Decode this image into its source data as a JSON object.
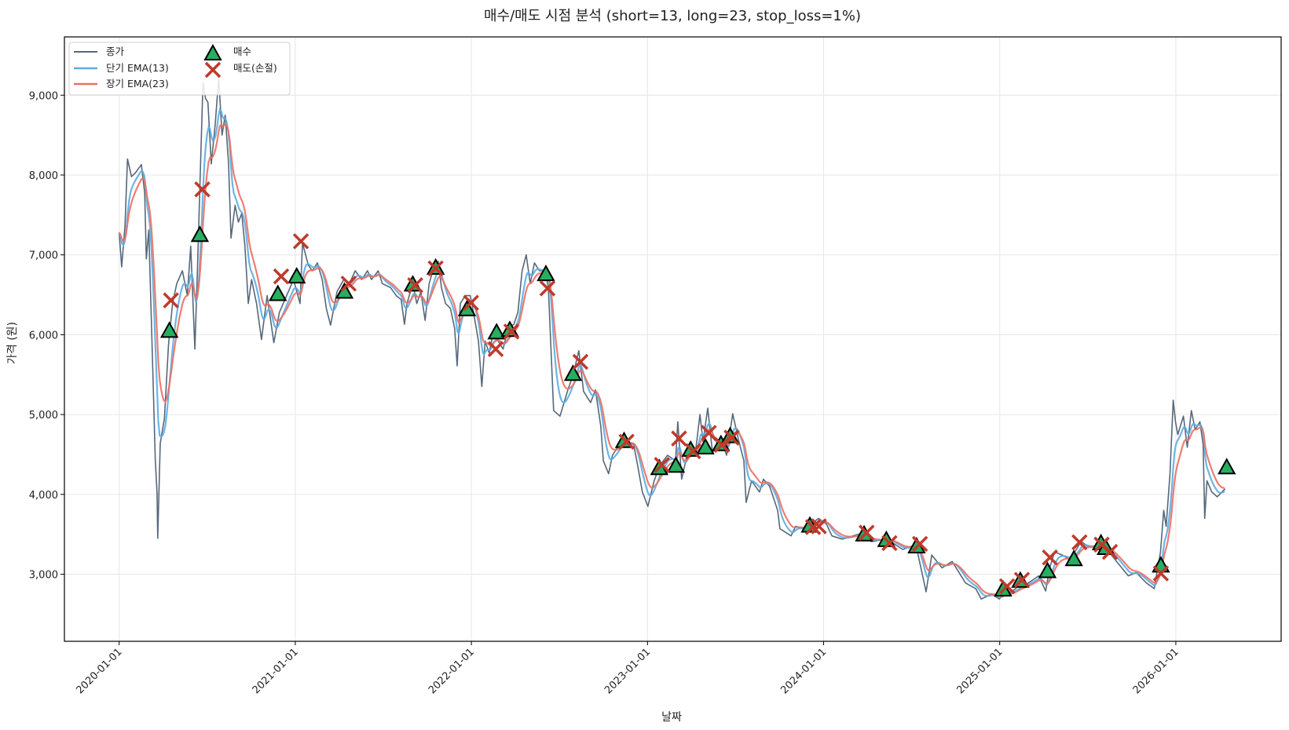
{
  "chart_data": {
    "type": "line",
    "title": "매수/매도 시점 분석 (short=13, long=23, stop_loss=1%)",
    "xlabel": "날짜",
    "ylabel": "가격 (원)",
    "xlim": [
      2019.689,
      2026.598
    ],
    "ylim": [
      2160,
      9730
    ],
    "grid": true,
    "legend_position": "top-left",
    "params": {
      "short": 13,
      "long": 23,
      "stop_loss_pct": 1
    },
    "xticks": [
      {
        "value": 2020,
        "label": "2020-01-01"
      },
      {
        "value": 2021,
        "label": "2021-01-01"
      },
      {
        "value": 2022,
        "label": "2022-01-01"
      },
      {
        "value": 2023,
        "label": "2023-01-01"
      },
      {
        "value": 2024,
        "label": "2024-01-01"
      },
      {
        "value": 2025,
        "label": "2025-01-01"
      },
      {
        "value": 2026,
        "label": "2026-01-01"
      }
    ],
    "yticks": [
      {
        "value": 3000,
        "label": "3,000"
      },
      {
        "value": 4000,
        "label": "4,000"
      },
      {
        "value": 5000,
        "label": "5,000"
      },
      {
        "value": 6000,
        "label": "6,000"
      },
      {
        "value": 7000,
        "label": "7,000"
      },
      {
        "value": 8000,
        "label": "8,000"
      },
      {
        "value": 9000,
        "label": "9,000"
      }
    ],
    "legend": {
      "close": "종가",
      "ema_short": "단기 EMA(13)",
      "ema_long": "장기 EMA(23)",
      "buy": "매수",
      "sell": "매도(손절)"
    },
    "colors": {
      "close": "#56687a",
      "ema_short": "#5dade2",
      "ema_long": "#ec7063",
      "buy_fill": "#27ae60",
      "buy_edge": "#000000",
      "sell": "#c0392b"
    },
    "x_units": "decimal year",
    "close": [
      [
        2020.0,
        7280
      ],
      [
        2020.014,
        6850
      ],
      [
        2020.033,
        7360
      ],
      [
        2020.047,
        8200
      ],
      [
        2020.07,
        7980
      ],
      [
        2020.093,
        8030
      ],
      [
        2020.126,
        8130
      ],
      [
        2020.145,
        7775
      ],
      [
        2020.154,
        6950
      ],
      [
        2020.168,
        7310
      ],
      [
        2020.191,
        5560
      ],
      [
        2020.205,
        4430
      ],
      [
        2020.215,
        4020
      ],
      [
        2020.219,
        3450
      ],
      [
        2020.233,
        4640
      ],
      [
        2020.257,
        4950
      ],
      [
        2020.28,
        5870
      ],
      [
        2020.303,
        6390
      ],
      [
        2020.327,
        6640
      ],
      [
        2020.359,
        6800
      ],
      [
        2020.387,
        6490
      ],
      [
        2020.406,
        7110
      ],
      [
        2020.43,
        5820
      ],
      [
        2020.444,
        6800
      ],
      [
        2020.458,
        7830
      ],
      [
        2020.476,
        9160
      ],
      [
        2020.49,
        8960
      ],
      [
        2020.504,
        8910
      ],
      [
        2020.523,
        8140
      ],
      [
        2020.546,
        8650
      ],
      [
        2020.565,
        9220
      ],
      [
        2020.584,
        8500
      ],
      [
        2020.602,
        8750
      ],
      [
        2020.621,
        8140
      ],
      [
        2020.635,
        7210
      ],
      [
        2020.658,
        7620
      ],
      [
        2020.677,
        7410
      ],
      [
        2020.696,
        7520
      ],
      [
        2020.714,
        7110
      ],
      [
        2020.733,
        6390
      ],
      [
        2020.752,
        6690
      ],
      [
        2020.78,
        6390
      ],
      [
        2020.808,
        5940
      ],
      [
        2020.84,
        6490
      ],
      [
        2020.878,
        5900
      ],
      [
        2020.91,
        6280
      ],
      [
        2020.99,
        6690
      ],
      [
        2021.027,
        6390
      ],
      [
        2021.041,
        7150
      ],
      [
        2021.074,
        6870
      ],
      [
        2021.097,
        6800
      ],
      [
        2021.125,
        6900
      ],
      [
        2021.153,
        6690
      ],
      [
        2021.176,
        6330
      ],
      [
        2021.2,
        6120
      ],
      [
        2021.237,
        6540
      ],
      [
        2021.275,
        6690
      ],
      [
        2021.307,
        6640
      ],
      [
        2021.34,
        6800
      ],
      [
        2021.377,
        6690
      ],
      [
        2021.41,
        6800
      ],
      [
        2021.433,
        6690
      ],
      [
        2021.471,
        6800
      ],
      [
        2021.494,
        6640
      ],
      [
        2021.541,
        6590
      ],
      [
        2021.573,
        6490
      ],
      [
        2021.601,
        6440
      ],
      [
        2021.62,
        6130
      ],
      [
        2021.634,
        6390
      ],
      [
        2021.667,
        6640
      ],
      [
        2021.69,
        6390
      ],
      [
        2021.713,
        6540
      ],
      [
        2021.737,
        6180
      ],
      [
        2021.76,
        6640
      ],
      [
        2021.788,
        6850
      ],
      [
        2021.811,
        6920
      ],
      [
        2021.83,
        6590
      ],
      [
        2021.853,
        6390
      ],
      [
        2021.881,
        6330
      ],
      [
        2021.905,
        6080
      ],
      [
        2021.919,
        5610
      ],
      [
        2021.937,
        6390
      ],
      [
        2021.965,
        6490
      ],
      [
        2021.993,
        6490
      ],
      [
        2022.012,
        6280
      ],
      [
        2022.04,
        5920
      ],
      [
        2022.059,
        5350
      ],
      [
        2022.078,
        5920
      ],
      [
        2022.101,
        5770
      ],
      [
        2022.124,
        6030
      ],
      [
        2022.152,
        5920
      ],
      [
        2022.18,
        5820
      ],
      [
        2022.208,
        6080
      ],
      [
        2022.241,
        6130
      ],
      [
        2022.264,
        6280
      ],
      [
        2022.288,
        6800
      ],
      [
        2022.311,
        7000
      ],
      [
        2022.334,
        6640
      ],
      [
        2022.358,
        6900
      ],
      [
        2022.386,
        6800
      ],
      [
        2022.418,
        6800
      ],
      [
        2022.437,
        6590
      ],
      [
        2022.467,
        5050
      ],
      [
        2022.503,
        4980
      ],
      [
        2022.548,
        5310
      ],
      [
        2022.578,
        5500
      ],
      [
        2022.61,
        5800
      ],
      [
        2022.637,
        5290
      ],
      [
        2022.677,
        5150
      ],
      [
        2022.704,
        5310
      ],
      [
        2022.735,
        4850
      ],
      [
        2022.749,
        4420
      ],
      [
        2022.779,
        4260
      ],
      [
        2022.801,
        4490
      ],
      [
        2022.859,
        4690
      ],
      [
        2022.922,
        4620
      ],
      [
        2022.944,
        4360
      ],
      [
        2022.971,
        4030
      ],
      [
        2023.002,
        3850
      ],
      [
        2023.038,
        4170
      ],
      [
        2023.069,
        4360
      ],
      [
        2023.114,
        4490
      ],
      [
        2023.159,
        4420
      ],
      [
        2023.172,
        4910
      ],
      [
        2023.194,
        4190
      ],
      [
        2023.234,
        4590
      ],
      [
        2023.27,
        4490
      ],
      [
        2023.298,
        5000
      ],
      [
        2023.315,
        4660
      ],
      [
        2023.342,
        5080
      ],
      [
        2023.369,
        4520
      ],
      [
        2023.414,
        4720
      ],
      [
        2023.449,
        4490
      ],
      [
        2023.484,
        5010
      ],
      [
        2023.516,
        4690
      ],
      [
        2023.547,
        4420
      ],
      [
        2023.56,
        3900
      ],
      [
        2023.591,
        4170
      ],
      [
        2023.636,
        4030
      ],
      [
        2023.658,
        4190
      ],
      [
        2023.694,
        4100
      ],
      [
        2023.739,
        3800
      ],
      [
        2023.752,
        3570
      ],
      [
        2023.815,
        3480
      ],
      [
        2023.841,
        3600
      ],
      [
        2023.886,
        3570
      ],
      [
        2023.931,
        3630
      ],
      [
        2023.971,
        3700
      ],
      [
        2024.016,
        3630
      ],
      [
        2024.047,
        3480
      ],
      [
        2024.105,
        3440
      ],
      [
        2024.168,
        3480
      ],
      [
        2024.212,
        3510
      ],
      [
        2024.27,
        3410
      ],
      [
        2024.359,
        3440
      ],
      [
        2024.449,
        3310
      ],
      [
        2024.524,
        3370
      ],
      [
        2024.582,
        2780
      ],
      [
        2024.614,
        3240
      ],
      [
        2024.672,
        3080
      ],
      [
        2024.73,
        3160
      ],
      [
        2024.806,
        2890
      ],
      [
        2024.864,
        2820
      ],
      [
        2024.895,
        2690
      ],
      [
        2024.953,
        2750
      ],
      [
        2024.998,
        2690
      ],
      [
        2025.02,
        2750
      ],
      [
        2025.074,
        2790
      ],
      [
        2025.105,
        2850
      ],
      [
        2025.163,
        2890
      ],
      [
        2025.221,
        2980
      ],
      [
        2025.261,
        2790
      ],
      [
        2025.284,
        3080
      ],
      [
        2025.311,
        3280
      ],
      [
        2025.355,
        3240
      ],
      [
        2025.4,
        3180
      ],
      [
        2025.462,
        3410
      ],
      [
        2025.507,
        3340
      ],
      [
        2025.565,
        3370
      ],
      [
        2025.609,
        3310
      ],
      [
        2025.667,
        3150
      ],
      [
        2025.73,
        2980
      ],
      [
        2025.775,
        3020
      ],
      [
        2025.833,
        2890
      ],
      [
        2025.877,
        2820
      ],
      [
        2025.913,
        3280
      ],
      [
        2025.931,
        3800
      ],
      [
        2025.945,
        3600
      ],
      [
        2025.967,
        4260
      ],
      [
        2025.985,
        5180
      ],
      [
        2025.998,
        4910
      ],
      [
        2026.011,
        4750
      ],
      [
        2026.043,
        4980
      ],
      [
        2026.065,
        4590
      ],
      [
        2026.088,
        5050
      ],
      [
        2026.11,
        4810
      ],
      [
        2026.137,
        4910
      ],
      [
        2026.155,
        4620
      ],
      [
        2026.164,
        3700
      ],
      [
        2026.177,
        4170
      ],
      [
        2026.204,
        4030
      ],
      [
        2026.235,
        3970
      ],
      [
        2026.28,
        4070
      ]
    ],
    "buy_signals": [
      [
        2020.285,
        6050
      ],
      [
        2020.458,
        7250
      ],
      [
        2020.901,
        6510
      ],
      [
        2021.008,
        6730
      ],
      [
        2021.279,
        6540
      ],
      [
        2021.667,
        6630
      ],
      [
        2021.797,
        6840
      ],
      [
        2021.975,
        6320
      ],
      [
        2022.143,
        6030
      ],
      [
        2022.218,
        6060
      ],
      [
        2022.423,
        6760
      ],
      [
        2022.577,
        5510
      ],
      [
        2022.867,
        4670
      ],
      [
        2023.067,
        4330
      ],
      [
        2023.161,
        4360
      ],
      [
        2023.245,
        4560
      ],
      [
        2023.329,
        4590
      ],
      [
        2023.417,
        4630
      ],
      [
        2023.469,
        4730
      ],
      [
        2023.922,
        3610
      ],
      [
        2024.23,
        3500
      ],
      [
        2024.356,
        3430
      ],
      [
        2024.528,
        3350
      ],
      [
        2025.019,
        2810
      ],
      [
        2025.117,
        2920
      ],
      [
        2025.271,
        3040
      ],
      [
        2025.421,
        3190
      ],
      [
        2025.575,
        3390
      ],
      [
        2025.602,
        3330
      ],
      [
        2025.915,
        3110
      ],
      [
        2026.289,
        4340
      ]
    ],
    "sell_signals": [
      [
        2020.294,
        6430
      ],
      [
        2020.472,
        7820
      ],
      [
        2020.92,
        6730
      ],
      [
        2021.032,
        7170
      ],
      [
        2021.303,
        6640
      ],
      [
        2021.681,
        6620
      ],
      [
        2021.797,
        6830
      ],
      [
        2021.998,
        6400
      ],
      [
        2022.138,
        5820
      ],
      [
        2022.227,
        6040
      ],
      [
        2022.432,
        6580
      ],
      [
        2022.619,
        5660
      ],
      [
        2022.881,
        4660
      ],
      [
        2023.082,
        4370
      ],
      [
        2023.179,
        4700
      ],
      [
        2023.259,
        4540
      ],
      [
        2023.348,
        4770
      ],
      [
        2023.422,
        4620
      ],
      [
        2023.478,
        4710
      ],
      [
        2023.94,
        3590
      ],
      [
        2023.973,
        3600
      ],
      [
        2024.244,
        3520
      ],
      [
        2024.374,
        3390
      ],
      [
        2024.547,
        3380
      ],
      [
        2025.042,
        2850
      ],
      [
        2025.126,
        2930
      ],
      [
        2025.285,
        3210
      ],
      [
        2025.453,
        3400
      ],
      [
        2025.579,
        3370
      ],
      [
        2025.626,
        3280
      ],
      [
        2025.915,
        3010
      ]
    ]
  }
}
